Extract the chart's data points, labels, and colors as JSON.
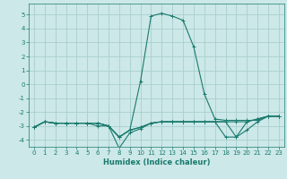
{
  "xlabel": "Humidex (Indice chaleur)",
  "xlim": [
    -0.5,
    23.5
  ],
  "ylim": [
    -4.5,
    5.8
  ],
  "yticks": [
    -4,
    -3,
    -2,
    -1,
    0,
    1,
    2,
    3,
    4,
    5
  ],
  "xticks": [
    0,
    1,
    2,
    3,
    4,
    5,
    6,
    7,
    8,
    9,
    10,
    11,
    12,
    13,
    14,
    15,
    16,
    17,
    18,
    19,
    20,
    21,
    22,
    23
  ],
  "background_color": "#cce8e8",
  "grid_color": "#aacece",
  "line_color": "#1a7a6e",
  "lines": [
    [
      -3.1,
      -2.7,
      -2.8,
      -2.8,
      -2.8,
      -2.8,
      -2.8,
      -3.0,
      -4.6,
      -3.5,
      -3.2,
      -2.8,
      -2.7,
      -2.7,
      -2.7,
      -2.7,
      -2.7,
      -2.7,
      -2.7,
      -3.8,
      -3.3,
      -2.7,
      -2.3,
      -2.3
    ],
    [
      -3.1,
      -2.7,
      -2.8,
      -2.8,
      -2.8,
      -2.8,
      -3.0,
      -3.0,
      -3.8,
      -3.3,
      0.2,
      4.9,
      5.1,
      4.9,
      4.6,
      2.7,
      -0.7,
      -2.5,
      -2.6,
      -2.6,
      -2.6,
      -2.6,
      -2.3,
      -2.3
    ],
    [
      -3.1,
      -2.7,
      -2.8,
      -2.8,
      -2.8,
      -2.8,
      -2.8,
      -3.0,
      -3.8,
      -3.3,
      -3.1,
      -2.8,
      -2.7,
      -2.7,
      -2.7,
      -2.7,
      -2.7,
      -2.7,
      -2.7,
      -2.7,
      -2.7,
      -2.5,
      -2.3,
      -2.3
    ],
    [
      -3.1,
      -2.7,
      -2.8,
      -2.8,
      -2.8,
      -2.8,
      -2.8,
      -3.0,
      -3.8,
      -3.3,
      -3.1,
      -2.8,
      -2.7,
      -2.7,
      -2.7,
      -2.7,
      -2.7,
      -2.7,
      -3.8,
      -3.8,
      -2.7,
      -2.5,
      -2.3,
      -2.3
    ]
  ]
}
